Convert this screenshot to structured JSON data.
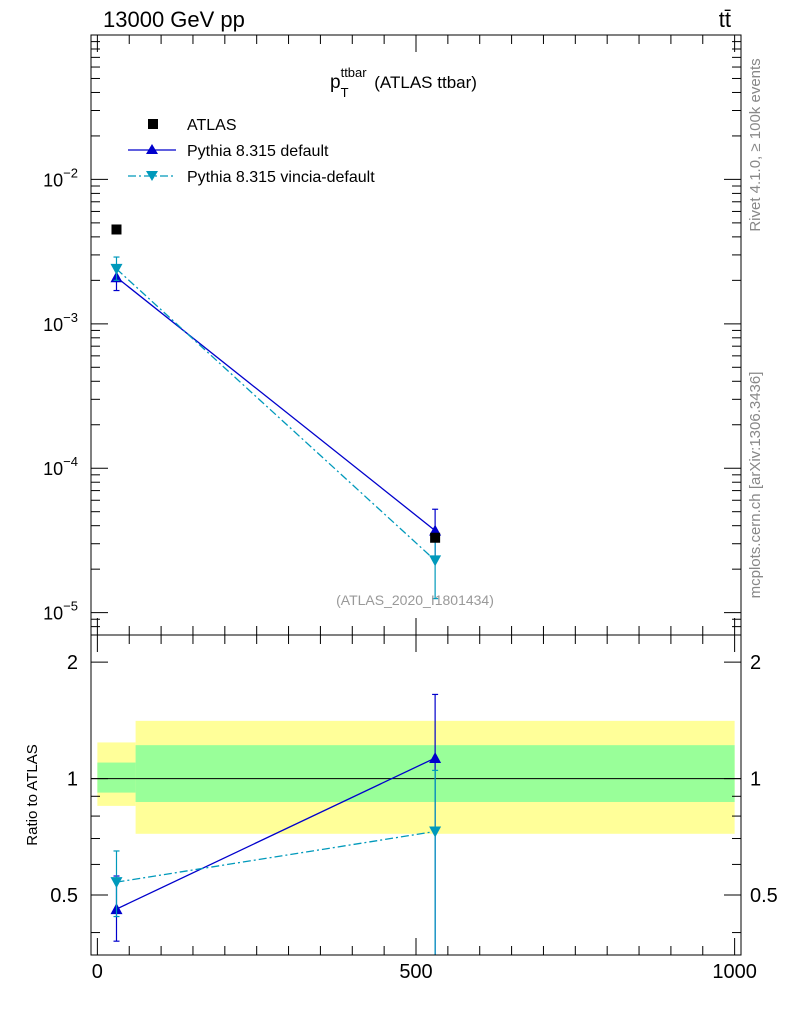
{
  "header": {
    "energy_label": "13000 GeV pp",
    "process_label": "tt̄"
  },
  "side_labels": {
    "rivet": "Rivet 4.1.0, ≥ 100k events",
    "mcplots": "mcplots.cern.ch [arXiv:1306.3436]"
  },
  "chart_data": [
    {
      "type": "scatter",
      "title": {
        "main": "p",
        "sup": "ttbar",
        "sub": "T",
        "suffix": " (ATLAS ttbar)"
      },
      "analysis_label": "(ATLAS_2020_I1801434)",
      "xlim": [
        -10,
        1010
      ],
      "ylim": [
        7e-06,
        0.1
      ],
      "yscale": "log",
      "y_ticks": [
        {
          "value": 1e-05,
          "mant": "10",
          "exp": "−5"
        },
        {
          "value": 0.0001,
          "mant": "10",
          "exp": "−4"
        },
        {
          "value": 0.001,
          "mant": "10",
          "exp": "−3"
        },
        {
          "value": 0.01,
          "mant": "10",
          "exp": "−2"
        }
      ],
      "legend": {
        "position": "top-left",
        "entries": [
          "ATLAS",
          "Pythia 8.315 default",
          "Pythia 8.315 vincia-default"
        ]
      },
      "series": [
        {
          "name": "ATLAS",
          "color": "#000000",
          "marker": "square",
          "line": "none",
          "x": [
            30,
            530
          ],
          "y": [
            0.0045,
            3.3e-05
          ]
        },
        {
          "name": "Pythia 8.315 default",
          "color": "#0000cc",
          "marker": "triangle-up",
          "line": "solid",
          "x": [
            30,
            530
          ],
          "y": [
            0.0021,
            3.7e-05
          ],
          "yerr_low": [
            0.0017,
            2.4e-05
          ],
          "yerr_high": [
            0.0025,
            5.2e-05
          ]
        },
        {
          "name": "Pythia 8.315 vincia-default",
          "color": "#0099bb",
          "marker": "triangle-down",
          "line": "dashdot",
          "x": [
            30,
            530
          ],
          "y": [
            0.0024,
            2.3e-05
          ],
          "yerr_low": [
            0.002,
            1.25e-05
          ],
          "yerr_high": [
            0.0029,
            3.5e-05
          ]
        }
      ]
    },
    {
      "type": "scatter",
      "ylabel": "Ratio to ATLAS",
      "xlim": [
        -10,
        1010
      ],
      "ylim": [
        0.35,
        2.35
      ],
      "x_ticks": [
        0,
        500,
        1000
      ],
      "y_ticks": [
        0.5,
        1,
        2
      ],
      "bands": [
        {
          "name": "stat+syst",
          "color": "#ffff99",
          "bins": [
            {
              "x0": 0,
              "x1": 60,
              "lo": 0.85,
              "hi": 1.24
            },
            {
              "x0": 60,
              "x1": 1000,
              "lo": 0.72,
              "hi": 1.41
            }
          ]
        },
        {
          "name": "stat",
          "color": "#99ff99",
          "bins": [
            {
              "x0": 0,
              "x1": 60,
              "lo": 0.92,
              "hi": 1.1
            },
            {
              "x0": 60,
              "x1": 1000,
              "lo": 0.87,
              "hi": 1.22
            }
          ]
        }
      ],
      "reference_line": 1,
      "series": [
        {
          "name": "Pythia 8.315 default",
          "color": "#0000cc",
          "marker": "triangle-up",
          "line": "solid",
          "x": [
            30,
            530
          ],
          "y": [
            0.46,
            1.13
          ],
          "yerr_low": [
            0.38,
            0.35
          ],
          "yerr_high": [
            0.56,
            1.65
          ]
        },
        {
          "name": "Pythia 8.315 vincia-default",
          "color": "#0099bb",
          "marker": "triangle-down",
          "line": "dashdot",
          "x": [
            30,
            530
          ],
          "y": [
            0.54,
            0.73
          ],
          "yerr_low": [
            0.44,
            0.35
          ],
          "yerr_high": [
            0.65,
            1.05
          ]
        }
      ]
    }
  ]
}
